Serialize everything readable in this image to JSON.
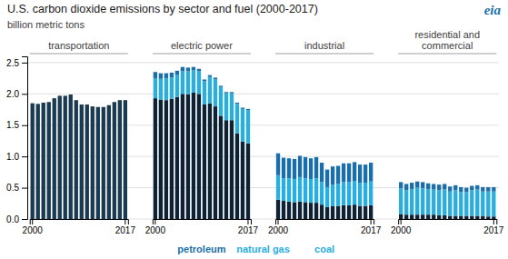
{
  "chart_data": {
    "type": "bar",
    "stacked": true,
    "grid": true,
    "title": "U.S. carbon dioxide emissions by sector and fuel (2000-2017)",
    "ylabel": "billion metric tons",
    "ylim": [
      0,
      2.6
    ],
    "yticks": [
      {
        "value": 0,
        "label": "0.0"
      },
      0.5,
      {
        "value": 1,
        "label": "1.0"
      },
      1.5,
      {
        "value": 2,
        "label": "2.0"
      },
      2.5
    ],
    "categories": [
      "2000",
      null,
      null,
      null,
      null,
      null,
      null,
      null,
      null,
      null,
      null,
      null,
      null,
      null,
      null,
      null,
      null,
      "2017"
    ],
    "groups": [
      {
        "name": "transportation",
        "series": [
          {
            "color": "#1a3a52",
            "values": [
              1.85,
              1.84,
              1.86,
              1.87,
              1.93,
              1.97,
              1.97,
              1.99,
              1.9,
              1.83,
              1.83,
              1.8,
              1.79,
              1.79,
              1.82,
              1.87,
              1.9,
              1.9
            ]
          }
        ]
      },
      {
        "name": "electric power",
        "series": [
          {
            "color": "#0d2235",
            "values": [
              1.93,
              1.91,
              1.9,
              1.92,
              1.95,
              2.0,
              1.99,
              2.02,
              2.0,
              1.83,
              1.85,
              1.8,
              1.65,
              1.58,
              1.58,
              1.37,
              1.24,
              1.21
            ]
          },
          {
            "color": "#29aee0",
            "values": [
              0.32,
              0.33,
              0.35,
              0.34,
              0.35,
              0.36,
              0.37,
              0.36,
              0.36,
              0.37,
              0.42,
              0.43,
              0.46,
              0.43,
              0.43,
              0.47,
              0.52,
              0.53
            ]
          },
          {
            "color": "#1a6faa",
            "values": [
              0.1,
              0.09,
              0.08,
              0.08,
              0.07,
              0.07,
              0.06,
              0.05,
              0.04,
              0.03,
              0.03,
              0.03,
              0.02,
              0.02,
              0.02,
              0.02,
              0.02,
              0.02
            ]
          }
        ]
      },
      {
        "name": "industrial",
        "series": [
          {
            "color": "#0d2235",
            "values": [
              0.31,
              0.29,
              0.28,
              0.27,
              0.28,
              0.27,
              0.26,
              0.26,
              0.23,
              0.19,
              0.21,
              0.21,
              0.22,
              0.22,
              0.23,
              0.21,
              0.21,
              0.22
            ]
          },
          {
            "color": "#29aee0",
            "values": [
              0.39,
              0.36,
              0.37,
              0.37,
              0.39,
              0.38,
              0.38,
              0.39,
              0.36,
              0.32,
              0.34,
              0.35,
              0.37,
              0.37,
              0.38,
              0.37,
              0.37,
              0.38
            ]
          },
          {
            "color": "#1a6faa",
            "values": [
              0.35,
              0.33,
              0.32,
              0.32,
              0.34,
              0.34,
              0.33,
              0.34,
              0.31,
              0.28,
              0.29,
              0.29,
              0.3,
              0.3,
              0.3,
              0.29,
              0.29,
              0.3
            ]
          }
        ]
      },
      {
        "name": "residential and\ncommercial",
        "series": [
          {
            "color": "#0d2235",
            "values": [
              0.08,
              0.07,
              0.07,
              0.07,
              0.07,
              0.07,
              0.07,
              0.06,
              0.06,
              0.05,
              0.05,
              0.05,
              0.05,
              0.05,
              0.05,
              0.05,
              0.04,
              0.04
            ]
          },
          {
            "color": "#29aee0",
            "values": [
              0.41,
              0.39,
              0.41,
              0.43,
              0.42,
              0.41,
              0.4,
              0.4,
              0.41,
              0.39,
              0.41,
              0.38,
              0.38,
              0.41,
              0.42,
              0.39,
              0.4,
              0.4
            ]
          },
          {
            "color": "#1a6faa",
            "values": [
              0.1,
              0.1,
              0.1,
              0.1,
              0.1,
              0.09,
              0.09,
              0.09,
              0.09,
              0.08,
              0.08,
              0.08,
              0.07,
              0.07,
              0.07,
              0.07,
              0.07,
              0.07
            ]
          }
        ]
      }
    ],
    "annotations": [
      {
        "text": "petroleum",
        "color": "#1a6faa"
      },
      {
        "text": "natural gas",
        "color": "#29aee0"
      },
      {
        "text": "coal",
        "color": "#29aee0"
      },
      {
        "text": "eia",
        "color": "#1a6faa"
      }
    ]
  }
}
